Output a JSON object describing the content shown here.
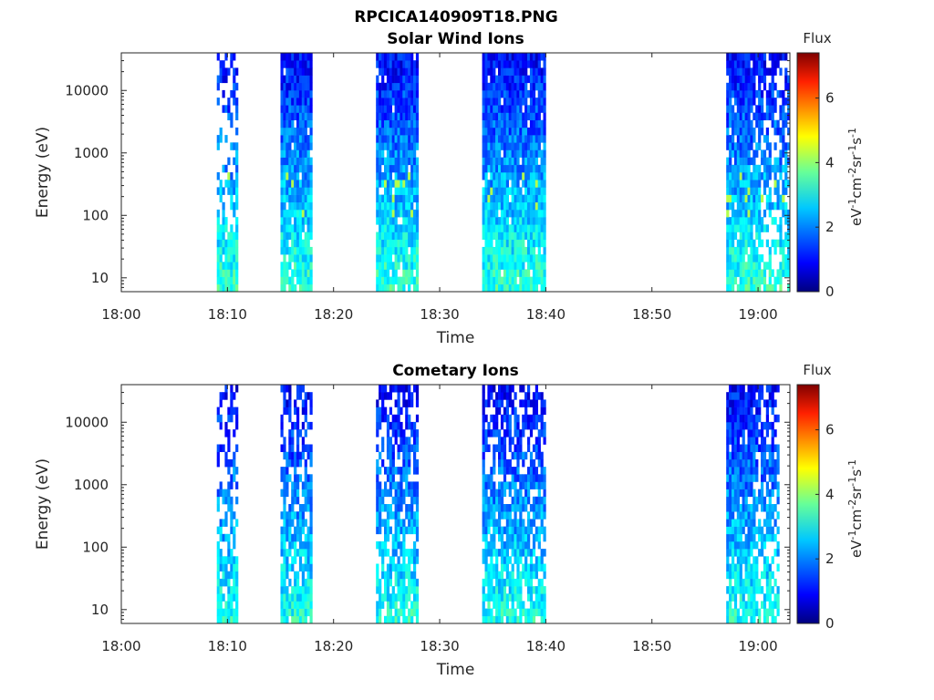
{
  "figure": {
    "main_title": "RPCICA140909T18.PNG"
  },
  "chart_data": [
    {
      "type": "heatmap",
      "title": "Solar Wind Ions",
      "xlabel": "Time",
      "ylabel": "Energy (eV)",
      "x_ticks": [
        "18:00",
        "18:10",
        "18:20",
        "18:30",
        "18:40",
        "18:50",
        "19:00"
      ],
      "x_range_minutes": [
        0,
        63
      ],
      "y_scale": "log",
      "y_ticks": [
        "10",
        "100",
        "1000",
        "10000"
      ],
      "y_range_ev": [
        6,
        40000
      ],
      "colorbar": {
        "title": "Flux",
        "label": "eV-1cm-2sr-1s-1",
        "range": [
          0,
          7.4
        ],
        "ticks": [
          "0",
          "2",
          "4",
          "6"
        ]
      },
      "active_intervals": [
        {
          "start": "18:09",
          "end": "18:11"
        },
        {
          "start": "18:15",
          "end": "18:18"
        },
        {
          "start": "18:24",
          "end": "18:28"
        },
        {
          "start": "18:34",
          "end": "18:40"
        },
        {
          "start": "18:57",
          "end": "19:03"
        }
      ]
    },
    {
      "type": "heatmap",
      "title": "Cometary Ions",
      "xlabel": "Time",
      "ylabel": "Energy (eV)",
      "x_ticks": [
        "18:00",
        "18:10",
        "18:20",
        "18:30",
        "18:40",
        "18:50",
        "19:00"
      ],
      "x_range_minutes": [
        0,
        63
      ],
      "y_scale": "log",
      "y_ticks": [
        "10",
        "100",
        "1000",
        "10000"
      ],
      "y_range_ev": [
        6,
        40000
      ],
      "colorbar": {
        "title": "Flux",
        "label": "eV-1cm-2sr-1s-1",
        "range": [
          0,
          7.4
        ],
        "ticks": [
          "0",
          "2",
          "4",
          "6"
        ]
      },
      "active_intervals": [
        {
          "start": "18:09",
          "end": "18:11"
        },
        {
          "start": "18:15",
          "end": "18:18"
        },
        {
          "start": "18:24",
          "end": "18:28"
        },
        {
          "start": "18:34",
          "end": "18:40"
        },
        {
          "start": "18:57",
          "end": "19:02"
        }
      ]
    }
  ]
}
